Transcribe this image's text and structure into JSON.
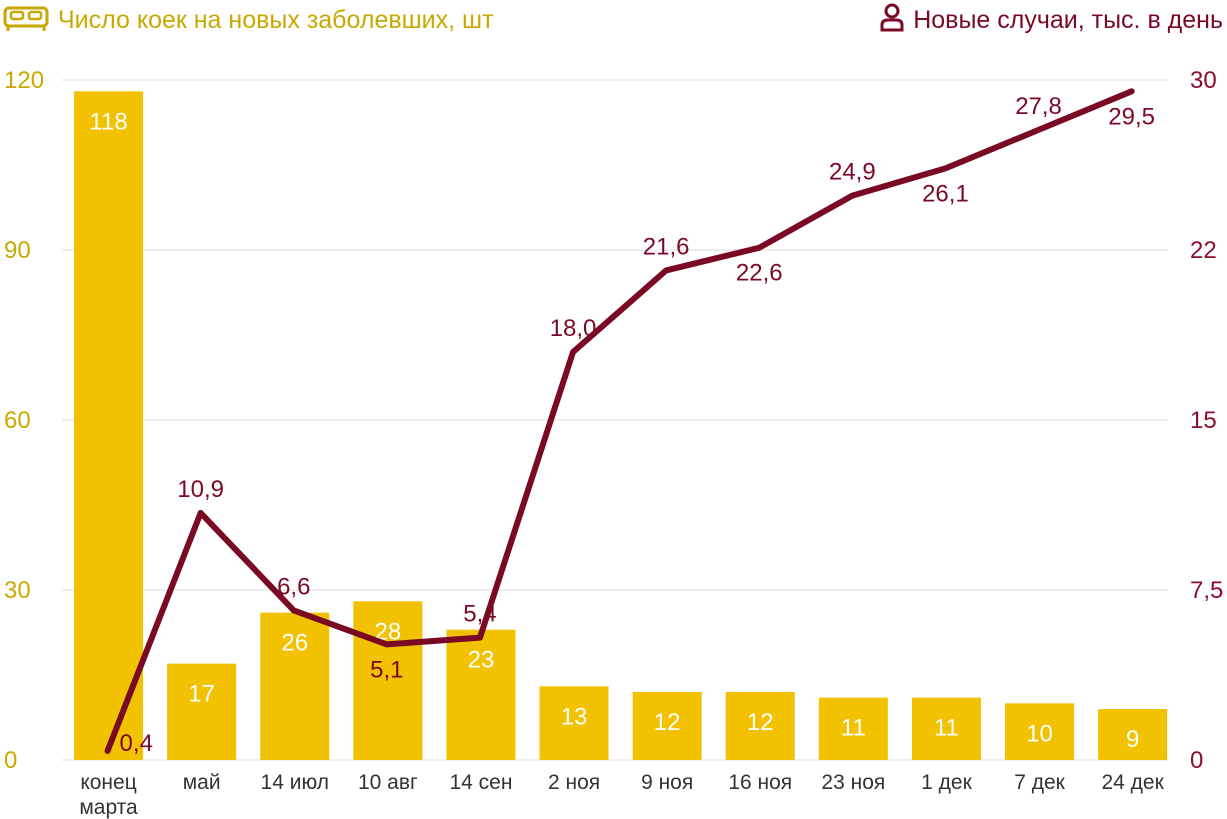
{
  "legend": {
    "bars_label": "Число коек на новых заболевших, шт",
    "line_label": "Новые случаи, тыс. в день",
    "bars_icon": "bed-icon",
    "line_icon": "person-icon"
  },
  "colors": {
    "bars": "#f2c200",
    "line": "#7a0a24",
    "left_axis_text": "#c9a800",
    "right_axis_text": "#8a0f2a",
    "grid": "#dddddd"
  },
  "chart_data": {
    "type": "bar+line",
    "categories": [
      [
        "конец",
        "марта"
      ],
      [
        "май"
      ],
      [
        "14 июл"
      ],
      [
        "10 авг"
      ],
      [
        "14 сен"
      ],
      [
        "2 ноя"
      ],
      [
        "9 ноя"
      ],
      [
        "16 ноя"
      ],
      [
        "23 ноя"
      ],
      [
        "1 дек"
      ],
      [
        "7 дек"
      ],
      [
        "24 дек"
      ]
    ],
    "series": [
      {
        "name": "Число коек на новых заболевших, шт",
        "kind": "bar",
        "axis": "left",
        "values": [
          118,
          17,
          26,
          28,
          23,
          13,
          12,
          12,
          11,
          11,
          10,
          9
        ],
        "labels": [
          "118",
          "17",
          "26",
          "28",
          "23",
          "13",
          "12",
          "12",
          "11",
          "11",
          "10",
          "9"
        ]
      },
      {
        "name": "Новые случаи, тыс. в день",
        "kind": "line",
        "axis": "right",
        "values": [
          0.4,
          10.9,
          6.6,
          5.1,
          5.4,
          18.0,
          21.6,
          22.6,
          24.9,
          26.1,
          27.8,
          29.5
        ],
        "labels": [
          "0,4",
          "10,9",
          "6,6",
          "5,1",
          "5,4",
          "18,0",
          "21,6",
          "22,6",
          "24,9",
          "26,1",
          "27,8",
          "29,5"
        ],
        "label_positions": [
          "right",
          "above",
          "above",
          "below",
          "above",
          "above",
          "above",
          "below",
          "above",
          "below",
          "above",
          "below"
        ]
      }
    ],
    "y_left": {
      "range": [
        0,
        120
      ],
      "ticks": [
        0,
        30,
        60,
        90,
        120
      ],
      "tick_labels": [
        "0",
        "30",
        "60",
        "90",
        "120"
      ]
    },
    "y_right": {
      "range": [
        0,
        30
      ],
      "ticks": [
        0,
        7.5,
        15,
        22.5,
        30
      ],
      "tick_labels": [
        "0",
        "7,5",
        "15",
        "22",
        "30"
      ]
    },
    "grid": true
  }
}
